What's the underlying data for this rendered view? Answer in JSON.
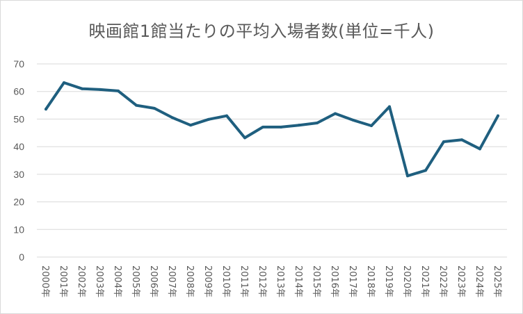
{
  "chart_data": {
    "type": "line",
    "title": "映画館1館当たりの平均入場者数(単位=千人)",
    "xlabel": "",
    "ylabel": "",
    "ylim": [
      0,
      70
    ],
    "yticks": [
      0,
      10,
      20,
      30,
      40,
      50,
      60,
      70
    ],
    "grid": true,
    "legend": "none",
    "line_color": "#1f5f7f",
    "categories": [
      "2000年",
      "2001年",
      "2002年",
      "2003年",
      "2004年",
      "2005年",
      "2006年",
      "2007年",
      "2008年",
      "2009年",
      "2010年",
      "2011年",
      "2012年",
      "2013年",
      "2014年",
      "2015年",
      "2016年",
      "2017年",
      "2018年",
      "2019年",
      "2020年",
      "2021年",
      "2022年",
      "2023年",
      "2024年",
      "2025年"
    ],
    "series": [
      {
        "values": [
          53.6,
          63.2,
          61.0,
          60.7,
          60.2,
          55.0,
          53.9,
          50.5,
          47.8,
          49.9,
          51.2,
          43.2,
          47.1,
          47.1,
          47.8,
          48.6,
          52.0,
          49.6,
          47.6,
          54.5,
          29.4,
          31.4,
          41.8,
          42.5,
          39.2,
          51.2
        ]
      }
    ]
  }
}
